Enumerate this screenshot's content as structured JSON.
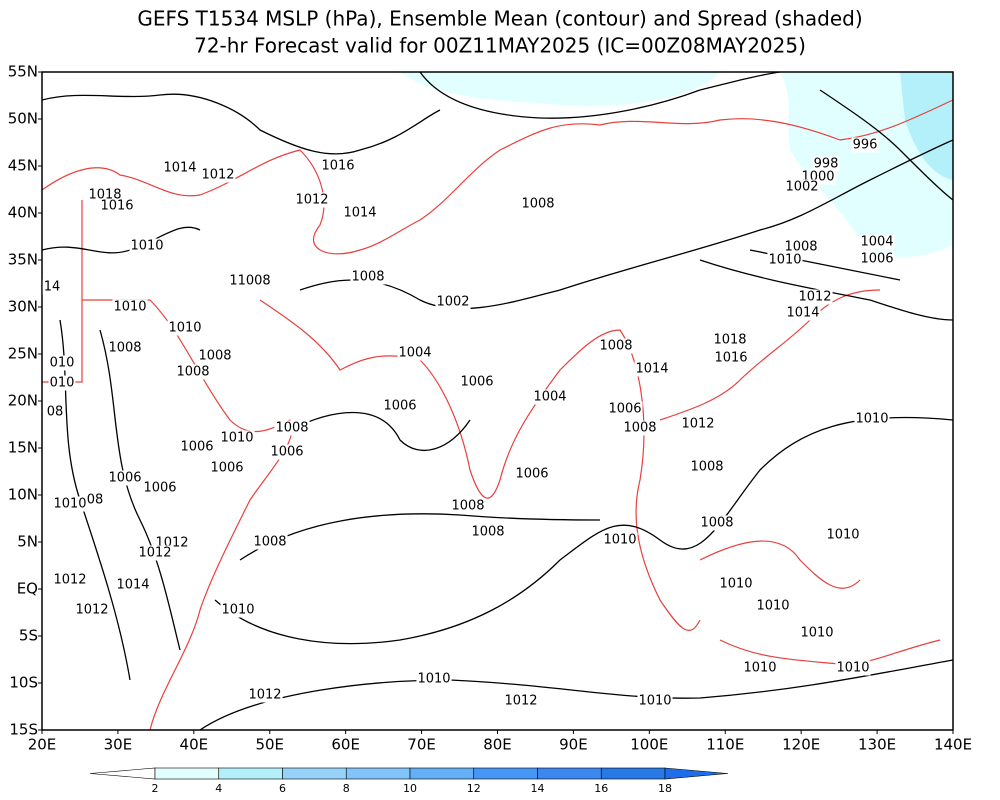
{
  "title": {
    "line1": "GEFS T1534 MSLP (hPa), Ensemble Mean (contour) and Spread (shaded)",
    "line2": "72-hr Forecast valid for 00Z11MAY2025 (IC=00Z08MAY2025)"
  },
  "map": {
    "lat_labels": [
      "55N",
      "50N",
      "45N",
      "40N",
      "35N",
      "30N",
      "25N",
      "20N",
      "15N",
      "10N",
      "5N",
      "EQ",
      "5S",
      "10S",
      "15S"
    ],
    "lon_labels": [
      "20E",
      "30E",
      "40E",
      "50E",
      "60E",
      "70E",
      "80E",
      "90E",
      "100E",
      "110E",
      "120E",
      "130E",
      "140E"
    ],
    "contour_labels": [
      "1014",
      "1012",
      "1016",
      "1018",
      "1016",
      "1012",
      "1014",
      "1008",
      "996",
      "998",
      "1000",
      "1002",
      "1010",
      "1004",
      "1008",
      "1006",
      "1010",
      "11008",
      "1008",
      "1012",
      "1002",
      "1014",
      "1010",
      "1010",
      "1018",
      "1008",
      "1008",
      "1008",
      "1004",
      "1016",
      "1008",
      "1014",
      "1006",
      "1006",
      "1004",
      "1006",
      "1010",
      "1008",
      "1010",
      "1006",
      "1006",
      "1012",
      "1008",
      "1006",
      "1006",
      "1008",
      "1006",
      "1006",
      "1010",
      "1008",
      "1008",
      "1008",
      "1010",
      "1008",
      "1012",
      "1012",
      "1010",
      "1012",
      "1014",
      "1012",
      "1010",
      "1010",
      "1010",
      "1010",
      "1010",
      "1010",
      "1010",
      "1012",
      "1012",
      "1010",
      "14",
      "010",
      "010",
      "08",
      "08"
    ]
  },
  "colorbar": {
    "ticks": [
      2,
      4,
      6,
      8,
      10,
      12,
      14,
      16,
      18
    ],
    "colors": [
      "#ffffff",
      "#e1ffff",
      "#b4f0fa",
      "#96d2fa",
      "#82c3fa",
      "#64aff5",
      "#4696f5",
      "#3c87f0",
      "#2878e6",
      "#1e6eeb"
    ]
  }
}
